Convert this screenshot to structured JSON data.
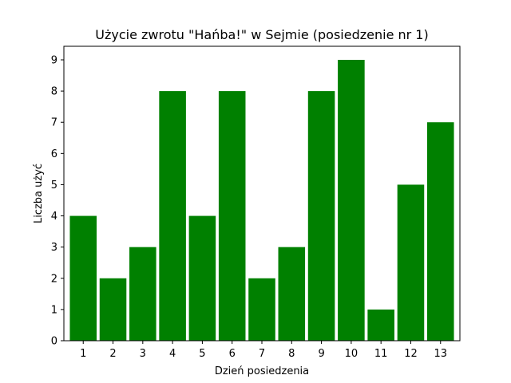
{
  "chart_data": {
    "type": "bar",
    "title": "Użycie zwrotu \"Hańba!\" w Sejmie (posiedzenie nr 1)",
    "xlabel": "Dzień posiedzenia",
    "ylabel": "Liczba użyć",
    "categories": [
      "1",
      "2",
      "3",
      "4",
      "5",
      "6",
      "7",
      "8",
      "9",
      "10",
      "11",
      "12",
      "13"
    ],
    "values": [
      4,
      2,
      3,
      8,
      4,
      8,
      2,
      3,
      8,
      9,
      1,
      5,
      7
    ],
    "ylim": [
      0,
      9
    ],
    "yticks": [
      0,
      1,
      2,
      3,
      4,
      5,
      6,
      7,
      8,
      9
    ],
    "bar_color": "#008000",
    "grid": false,
    "legend": "none"
  }
}
